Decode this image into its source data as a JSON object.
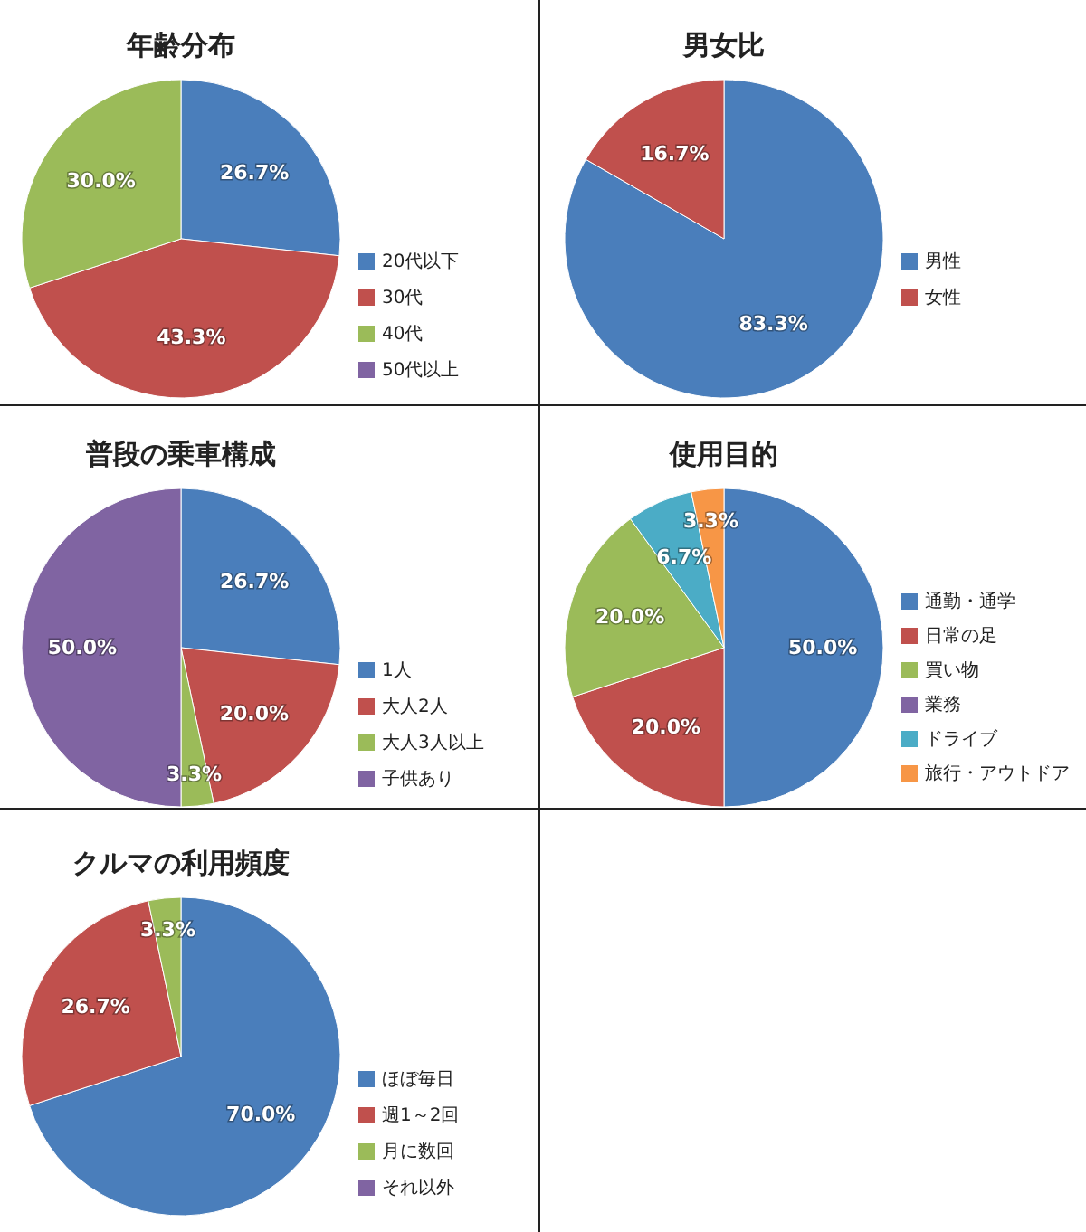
{
  "chart_data": [
    {
      "type": "pie",
      "title": "年齢分布",
      "categories": [
        "20代以下",
        "30代",
        "40代",
        "50代以上"
      ],
      "values": [
        26.7,
        43.3,
        30.0,
        0
      ],
      "value_labels": [
        "26.7%",
        "43.3%",
        "30.0%",
        null
      ],
      "colors": [
        "#4a7ebb",
        "#c0504d",
        "#9bbb59",
        "#8064a2"
      ],
      "legend": "right"
    },
    {
      "type": "pie",
      "title": "男女比",
      "categories": [
        "男性",
        "女性"
      ],
      "values": [
        83.3,
        16.7
      ],
      "value_labels": [
        "83.3%",
        "16.7%"
      ],
      "colors": [
        "#4a7ebb",
        "#c0504d"
      ],
      "legend": "right"
    },
    {
      "type": "pie",
      "title": "普段の乗車構成",
      "categories": [
        "1人",
        "大人2人",
        "大人3人以上",
        "子供あり"
      ],
      "values": [
        26.7,
        20.0,
        3.3,
        50.0
      ],
      "value_labels": [
        "26.7%",
        "20.0%",
        "3.3%",
        "50.0%"
      ],
      "colors": [
        "#4a7ebb",
        "#c0504d",
        "#9bbb59",
        "#8064a2"
      ],
      "legend": "right"
    },
    {
      "type": "pie",
      "title": "使用目的",
      "categories": [
        "通勤・通学",
        "日常の足",
        "買い物",
        "業務",
        "ドライブ",
        "旅行・アウトドア"
      ],
      "values": [
        50.0,
        20.0,
        20.0,
        0,
        6.7,
        3.3
      ],
      "value_labels": [
        "50.0%",
        "20.0%",
        "20.0%",
        null,
        "6.7%",
        "3.3%"
      ],
      "colors": [
        "#4a7ebb",
        "#c0504d",
        "#9bbb59",
        "#8064a2",
        "#4bacc6",
        "#f79646"
      ],
      "legend": "right"
    },
    {
      "type": "pie",
      "title": "クルマの利用頻度",
      "categories": [
        "ほぼ毎日",
        "週1～2回",
        "月に数回",
        "それ以外"
      ],
      "values": [
        70.0,
        26.7,
        3.3,
        0
      ],
      "value_labels": [
        "70.0%",
        "26.7%",
        "3.3%",
        null
      ],
      "colors": [
        "#4a7ebb",
        "#c0504d",
        "#9bbb59",
        "#8064a2"
      ],
      "legend": "right"
    }
  ]
}
